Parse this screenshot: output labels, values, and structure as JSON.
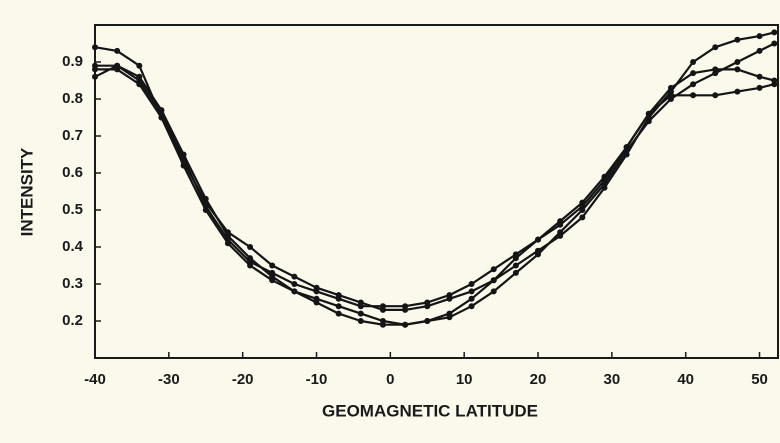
{
  "chart_data": {
    "type": "line",
    "x_label": "GEOMAGNETIC LATITUDE",
    "y_label": "INTENSITY",
    "x": [
      -40,
      -37,
      -34,
      -31,
      -28,
      -25,
      -22,
      -19,
      -16,
      -13,
      -10,
      -7,
      -4,
      -1,
      2,
      5,
      8,
      11,
      14,
      17,
      20,
      23,
      26,
      29,
      32,
      35,
      38,
      41,
      44,
      47,
      50,
      52
    ],
    "series": [
      {
        "color": "#151515",
        "values": [
          0.94,
          0.93,
          0.89,
          0.75,
          0.63,
          0.52,
          0.44,
          0.4,
          0.35,
          0.32,
          0.29,
          0.27,
          0.25,
          0.23,
          0.23,
          0.24,
          0.26,
          0.28,
          0.31,
          0.35,
          0.39,
          0.43,
          0.48,
          0.56,
          0.65,
          0.75,
          0.82,
          0.9,
          0.94,
          0.96,
          0.97,
          0.98
        ]
      },
      {
        "color": "#151515",
        "values": [
          0.86,
          0.89,
          0.86,
          0.77,
          0.65,
          0.53,
          0.43,
          0.37,
          0.32,
          0.28,
          0.25,
          0.22,
          0.2,
          0.19,
          0.19,
          0.2,
          0.22,
          0.26,
          0.31,
          0.37,
          0.42,
          0.47,
          0.52,
          0.59,
          0.67,
          0.76,
          0.81,
          0.81,
          0.81,
          0.82,
          0.83,
          0.84
        ]
      },
      {
        "color": "#151515",
        "values": [
          0.89,
          0.89,
          0.85,
          0.76,
          0.64,
          0.51,
          0.42,
          0.36,
          0.33,
          0.3,
          0.28,
          0.26,
          0.24,
          0.24,
          0.24,
          0.25,
          0.27,
          0.3,
          0.34,
          0.38,
          0.42,
          0.46,
          0.51,
          0.58,
          0.67,
          0.76,
          0.83,
          0.87,
          0.88,
          0.88,
          0.86,
          0.85
        ]
      },
      {
        "color": "#151515",
        "values": [
          0.88,
          0.88,
          0.84,
          0.75,
          0.62,
          0.5,
          0.41,
          0.35,
          0.31,
          0.28,
          0.26,
          0.24,
          0.22,
          0.2,
          0.19,
          0.2,
          0.21,
          0.24,
          0.28,
          0.33,
          0.38,
          0.44,
          0.5,
          0.57,
          0.66,
          0.74,
          0.8,
          0.84,
          0.87,
          0.9,
          0.93,
          0.95
        ]
      }
    ],
    "xlim": [
      -40,
      52.5
    ],
    "ylim": [
      0.1,
      1.0
    ],
    "xticks": [
      -40,
      -30,
      -20,
      -10,
      0,
      10,
      20,
      30,
      40,
      50
    ],
    "yticks": [
      0.2,
      0.3,
      0.4,
      0.5,
      0.6,
      0.7,
      0.8,
      0.9
    ],
    "markers": true,
    "grid": false
  }
}
